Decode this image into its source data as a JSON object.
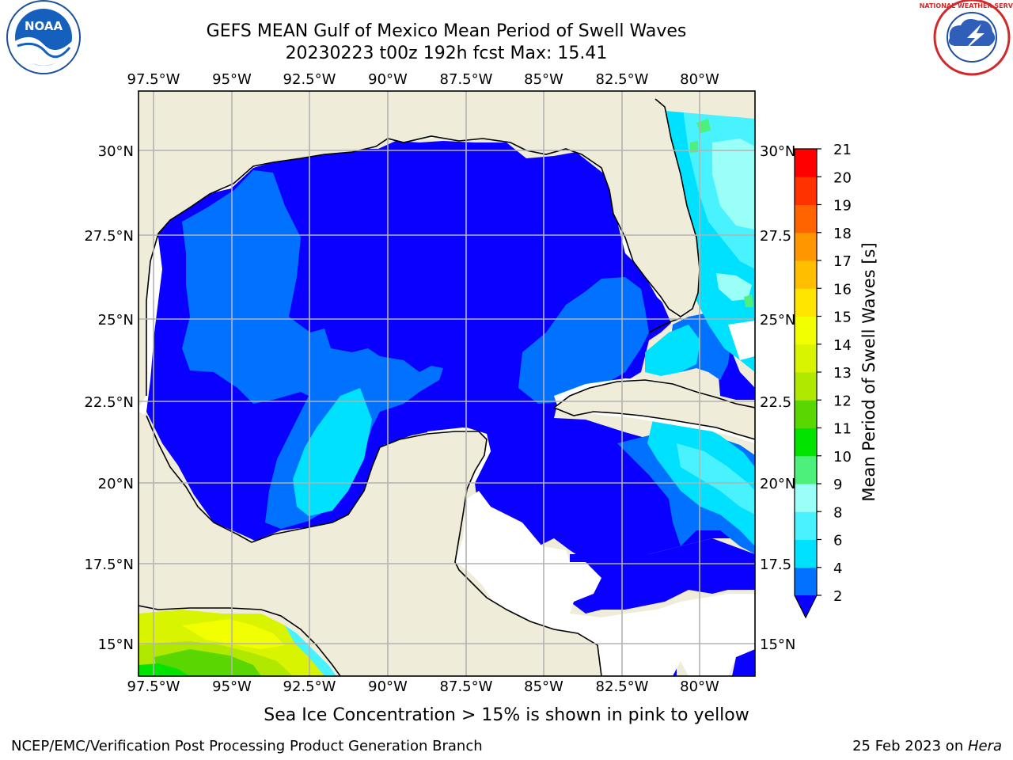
{
  "header": {
    "title_line1": "GEFS MEAN Gulf of Mexico Mean Period of Swell Waves",
    "title_line2": "20230223 t00z 192h fcst   Max: 15.41"
  },
  "logos": {
    "left": {
      "icon": "noaa-logo-icon",
      "text": "NOAA"
    },
    "right": {
      "icon": "nws-logo-icon",
      "text": "NATIONAL WEATHER SERVICE"
    }
  },
  "map": {
    "lon_labels": [
      "97.5°W",
      "95°W",
      "92.5°W",
      "90°W",
      "87.5°W",
      "85°W",
      "82.5°W",
      "80°W"
    ],
    "lat_labels_left": [
      "30°N",
      "27.5°N",
      "25°N",
      "22.5°N",
      "20°N",
      "17.5°N",
      "15°N"
    ],
    "lat_labels_right": [
      "30°N",
      "27.5",
      "25°N",
      "22.5",
      "20°N",
      "17.5",
      "15°N"
    ],
    "colors": {
      "land": "#efedd9",
      "coast": "#000000",
      "grid": "#b3b3b3",
      "no_data": "#ffffff"
    }
  },
  "colorbar": {
    "title": "Mean Period of Swell Waves [s]",
    "tick_labels": [
      "2",
      "4",
      "6",
      "8",
      "9",
      "10",
      "11",
      "12",
      "13",
      "14",
      "15",
      "16",
      "17",
      "18",
      "19",
      "20",
      "21"
    ],
    "colors": [
      "#0072ff",
      "#00e0ff",
      "#48f2ff",
      "#9afff6",
      "#4ef07c",
      "#00e400",
      "#5ad700",
      "#b0e800",
      "#d9f400",
      "#f2ff00",
      "#ffe500",
      "#ffbe00",
      "#ff9600",
      "#ff6400",
      "#ff3200",
      "#ff0000"
    ],
    "extend_color": "#0a00ff"
  },
  "footer": {
    "note": "Sea Ice Concentration > 15% is shown in pink to yellow",
    "credit": "NCEP/EMC/Verification Post Processing Product Generation Branch",
    "date": "25 Feb 2023 on ",
    "host": "Hera"
  }
}
